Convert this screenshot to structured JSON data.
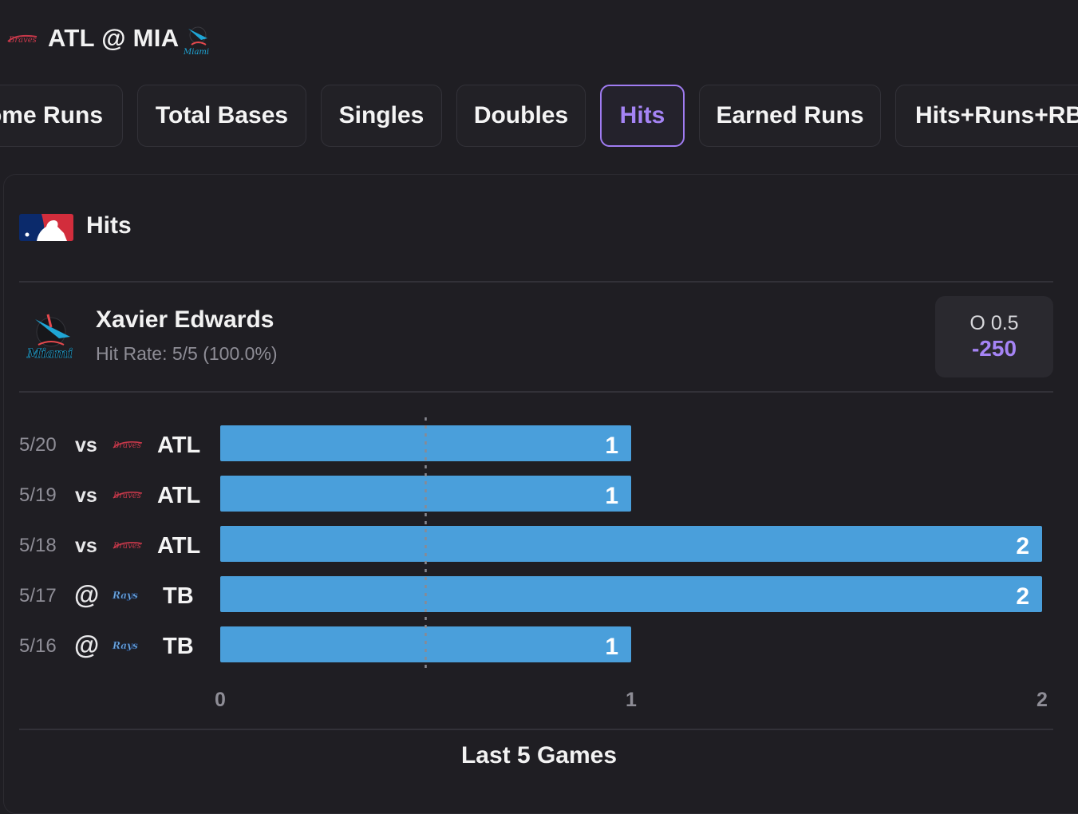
{
  "header": {
    "title": "ATL @ MIA",
    "away_logo_icon": "braves-logo-icon",
    "home_logo_icon": "marlins-logo-icon"
  },
  "tabs": [
    {
      "label": "Home Runs",
      "active": false
    },
    {
      "label": "Total Bases",
      "active": false
    },
    {
      "label": "Singles",
      "active": false
    },
    {
      "label": "Doubles",
      "active": false
    },
    {
      "label": "Hits",
      "active": true
    },
    {
      "label": "Earned Runs",
      "active": false
    },
    {
      "label": "Hits+Runs+RBI",
      "active": false
    }
  ],
  "section": {
    "title": "Hits",
    "league_logo_icon": "mlb-logo-icon"
  },
  "player": {
    "name": "Xavier Edwards",
    "hit_rate": "Hit Rate: 5/5 (100.0%)",
    "team_logo_icon": "marlins-logo-icon"
  },
  "odds": {
    "line": "O 0.5",
    "price": "-250"
  },
  "games": [
    {
      "date": "5/20",
      "venue": "vs",
      "opponent": "ATL",
      "logo": "braves-logo-icon"
    },
    {
      "date": "5/19",
      "venue": "vs",
      "opponent": "ATL",
      "logo": "braves-logo-icon"
    },
    {
      "date": "5/18",
      "venue": "vs",
      "opponent": "ATL",
      "logo": "braves-logo-icon"
    },
    {
      "date": "5/17",
      "venue": "@",
      "opponent": "TB",
      "logo": "rays-logo-icon"
    },
    {
      "date": "5/16",
      "venue": "@",
      "opponent": "TB",
      "logo": "rays-logo-icon"
    }
  ],
  "chart_data": {
    "type": "bar",
    "orientation": "horizontal",
    "categories": [
      "5/20",
      "5/19",
      "5/18",
      "5/17",
      "5/16"
    ],
    "values": [
      1,
      1,
      2,
      2,
      1
    ],
    "xlim": [
      0,
      2
    ],
    "x_ticks": [
      "0",
      "1",
      "2"
    ],
    "threshold_line": 0.5,
    "bar_color": "#4a9fdb",
    "xlabel": "Last 5 Games"
  },
  "colors": {
    "accent": "#a584f5",
    "bar": "#4a9fdb",
    "background": "#1f1e23"
  }
}
